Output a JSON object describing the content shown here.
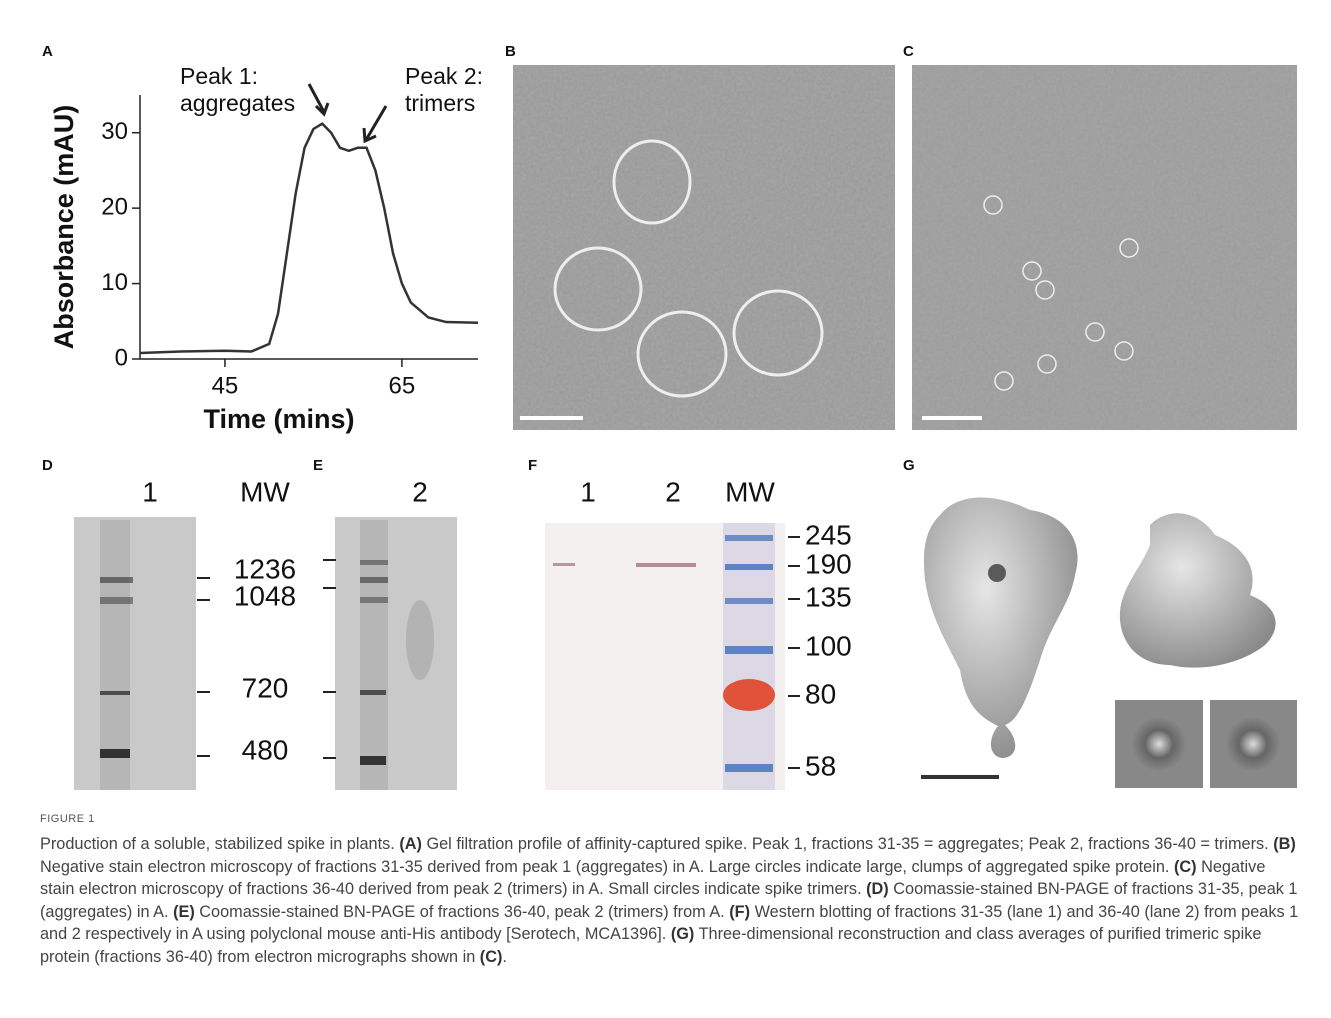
{
  "chart_data": {
    "type": "line",
    "x_label": "Time (mins)",
    "y_label": "Absorbance (mAU)",
    "x": [
      35.4,
      40,
      45,
      48,
      50,
      51,
      52,
      53,
      54,
      55,
      56,
      57,
      58,
      59,
      60,
      61,
      62,
      63,
      64,
      65,
      66,
      68,
      70,
      73.6
    ],
    "values": [
      0.8,
      1.0,
      1.1,
      1.0,
      2,
      6,
      14,
      22,
      28,
      30.5,
      31.2,
      30,
      28,
      27.6,
      28,
      28,
      25,
      20,
      14,
      10,
      7.5,
      5.5,
      4.9,
      4.8
    ],
    "color": "#333333",
    "xlim": [
      35.4,
      73.6
    ],
    "ylim": [
      0,
      35
    ],
    "xticks": [
      45,
      65
    ],
    "yticks": [
      0,
      10,
      20,
      30
    ],
    "annotations": [
      {
        "lines": [
          "Peak 1:",
          "aggregates"
        ]
      },
      {
        "lines": [
          "Peak 2:",
          "trimers"
        ]
      }
    ]
  },
  "panels": {
    "A": {
      "label": "A"
    },
    "B": {
      "label": "B"
    },
    "C": {
      "label": "C"
    },
    "D": {
      "label": "D",
      "lanes": [
        "1"
      ],
      "mw_header": "MW",
      "markers": [
        1236,
        1048,
        720,
        480
      ]
    },
    "E": {
      "label": "E",
      "lanes": [
        "2"
      ]
    },
    "F": {
      "label": "F",
      "lanes": [
        "1",
        "2"
      ],
      "mw_header": "MW",
      "markers": [
        245,
        190,
        135,
        100,
        80,
        58
      ]
    },
    "G": {
      "label": "G"
    }
  },
  "caption": {
    "label": "FIGURE 1",
    "intro": "Production of a soluble, stabilized spike in plants.",
    "parts": [
      {
        "key": "(A)",
        "text": "Gel filtration profile of affinity-captured spike. Peak 1, fractions 31-35 = aggregates; Peak 2, fractions 36-40 = trimers."
      },
      {
        "key": "(B)",
        "text": "Negative stain electron microscopy of fractions 31-35 derived from peak 1 (aggregates) in A. Large circles indicate large, clumps of aggregated spike protein."
      },
      {
        "key": "(C)",
        "text": "Negative stain electron microscopy of fractions 36-40 derived from peak 2 (trimers) in A. Small circles indicate spike trimers."
      },
      {
        "key": "(D)",
        "text": "Coomassie-stained BN-PAGE of fractions 31-35, peak 1 (aggregates) in A."
      },
      {
        "key": "(E)",
        "text": "Coomassie-stained BN-PAGE of fractions 36-40, peak 2 (trimers) from A."
      },
      {
        "key": "(F)",
        "text": "Western blotting of fractions 31-35 (lane 1) and 36-40 (lane 2) from peaks 1 and 2 respectively in A using polyclonal mouse anti-His antibody [Serotech, MCA1396]."
      },
      {
        "key": "(G)",
        "text": "Three-dimensional reconstruction and class averages of purified trimeric spike protein (fractions 36-40) from electron micrographs shown in"
      },
      {
        "key": "(C)",
        "text": "."
      }
    ]
  }
}
